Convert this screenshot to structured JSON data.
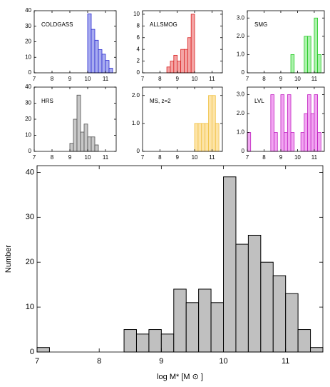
{
  "chart_data": [
    {
      "type": "histogram",
      "title": "COLDGASS",
      "color": "#2a2ad0",
      "fill": "#a8acf0",
      "bins": [
        7.0,
        7.2,
        7.4,
        7.6,
        7.8,
        8.0,
        8.2,
        8.4,
        8.6,
        8.8,
        9.0,
        9.2,
        9.4,
        9.6,
        9.8,
        10.0,
        10.2,
        10.4,
        10.6,
        10.8,
        11.0,
        11.2,
        11.4,
        11.6
      ],
      "values": [
        0,
        0,
        0,
        0,
        0,
        0,
        0,
        0,
        0,
        0,
        0,
        0,
        0,
        0,
        0,
        38,
        28,
        21,
        15,
        12,
        8,
        3,
        0
      ],
      "xlim": [
        7,
        11.6
      ],
      "xticks": [
        7,
        8,
        9,
        10,
        11
      ],
      "ylim": [
        0,
        40
      ],
      "yticks": [
        0,
        10,
        20,
        30,
        40
      ]
    },
    {
      "type": "histogram",
      "title": "ALLSMOG",
      "color": "#d82020",
      "fill": "#f4a4a4",
      "bins": [
        7.0,
        7.2,
        7.4,
        7.6,
        7.8,
        8.0,
        8.2,
        8.4,
        8.6,
        8.8,
        9.0,
        9.2,
        9.4,
        9.6,
        9.8,
        10.0,
        10.2,
        10.4,
        10.6,
        10.8,
        11.0,
        11.2,
        11.4,
        11.6
      ],
      "values": [
        0,
        0,
        0,
        0,
        0,
        0,
        0,
        1,
        2,
        3,
        2,
        4,
        4,
        6,
        10,
        0,
        0,
        0,
        0,
        0,
        0,
        0,
        0
      ],
      "xlim": [
        7,
        11.6
      ],
      "xticks": [
        7,
        8,
        9,
        10,
        11
      ],
      "ylim": [
        0,
        10.6
      ],
      "yticks": [
        0,
        2,
        4,
        6,
        8,
        10
      ]
    },
    {
      "type": "histogram",
      "title": "SMG",
      "color": "#22c822",
      "fill": "#acf2ac",
      "bins": [
        7.0,
        7.2,
        7.4,
        7.6,
        7.8,
        8.0,
        8.2,
        8.4,
        8.6,
        8.8,
        9.0,
        9.2,
        9.4,
        9.6,
        9.8,
        10.0,
        10.2,
        10.4,
        10.6,
        10.8,
        11.0,
        11.2,
        11.4,
        11.6
      ],
      "values": [
        0,
        0,
        0,
        0,
        0,
        0,
        0,
        0,
        0,
        0,
        0,
        0,
        0,
        1,
        0,
        0,
        0,
        2,
        2,
        0,
        3,
        1,
        0
      ],
      "xlim": [
        7,
        11.6
      ],
      "xticks": [
        7,
        8,
        9,
        10,
        11
      ],
      "ylim": [
        0,
        3.4
      ],
      "yticks": [
        0,
        {
          "value": 1,
          "label": "1.0"
        },
        {
          "value": 2,
          "label": "2.0"
        },
        {
          "value": 3,
          "label": "3.0"
        }
      ]
    },
    {
      "type": "histogram",
      "title": "HRS",
      "color": "#505050",
      "fill": "#c8c8c8",
      "bins": [
        7.0,
        7.2,
        7.4,
        7.6,
        7.8,
        8.0,
        8.2,
        8.4,
        8.6,
        8.8,
        9.0,
        9.2,
        9.4,
        9.6,
        9.8,
        10.0,
        10.2,
        10.4,
        10.6,
        10.8,
        11.0,
        11.2,
        11.4,
        11.6
      ],
      "values": [
        0,
        0,
        0,
        0,
        0,
        0,
        0,
        0,
        0,
        0,
        5,
        20,
        35,
        12,
        17,
        9,
        9,
        4,
        0,
        0,
        0,
        0,
        0
      ],
      "xlim": [
        7,
        11.6
      ],
      "xticks": [
        7,
        8,
        9,
        10,
        11
      ],
      "ylim": [
        0,
        40
      ],
      "yticks": [
        0,
        10,
        20,
        30,
        40
      ]
    },
    {
      "type": "histogram",
      "title": "MS, z=2",
      "color": "#f0c040",
      "fill": "#fde4a8",
      "bins": [
        7.0,
        7.2,
        7.4,
        7.6,
        7.8,
        8.0,
        8.2,
        8.4,
        8.6,
        8.8,
        9.0,
        9.2,
        9.4,
        9.6,
        9.8,
        10.0,
        10.2,
        10.4,
        10.6,
        10.8,
        11.0,
        11.2,
        11.4,
        11.6
      ],
      "values": [
        0,
        0,
        0,
        0,
        0,
        0,
        0,
        0,
        0,
        0,
        0,
        0,
        0,
        0,
        0,
        1,
        1,
        1,
        1,
        2,
        2,
        1,
        0
      ],
      "xlim": [
        7,
        11.6
      ],
      "xticks": [
        7,
        8,
        9,
        10,
        11
      ],
      "ylim": [
        0,
        2.3
      ],
      "yticks": [
        0,
        {
          "value": 1,
          "label": "1.0"
        },
        {
          "value": 2,
          "label": "2.0"
        }
      ]
    },
    {
      "type": "histogram",
      "title": "LVL",
      "color": "#c020c0",
      "fill": "#f2a6f2",
      "bins": [
        7.0,
        7.2,
        7.4,
        7.6,
        7.8,
        8.0,
        8.2,
        8.4,
        8.6,
        8.8,
        9.0,
        9.2,
        9.4,
        9.6,
        9.8,
        10.0,
        10.2,
        10.4,
        10.6,
        10.8,
        11.0,
        11.2,
        11.4,
        11.6
      ],
      "values": [
        1,
        0,
        0,
        0,
        0,
        0,
        0,
        3,
        1,
        0,
        3,
        1,
        3,
        1,
        0,
        0,
        1,
        2,
        3,
        2,
        3,
        1,
        0
      ],
      "xlim": [
        7,
        11.6
      ],
      "xticks": [
        7,
        8,
        9,
        10,
        11
      ],
      "ylim": [
        0,
        3.4
      ],
      "yticks": [
        0,
        {
          "value": 1,
          "label": "1.0"
        },
        {
          "value": 2,
          "label": "2.0"
        },
        {
          "value": 3,
          "label": "3.0"
        }
      ]
    },
    {
      "type": "histogram",
      "xlabel": "log M*  [M ⊙ ]",
      "ylabel": "Number",
      "color": "#000000",
      "fill": "#c0c0c0",
      "bins": [
        7.0,
        7.2,
        7.4,
        7.6,
        7.8,
        8.0,
        8.2,
        8.4,
        8.6,
        8.8,
        9.0,
        9.2,
        9.4,
        9.6,
        9.8,
        10.0,
        10.2,
        10.4,
        10.6,
        10.8,
        11.0,
        11.2,
        11.4,
        11.6
      ],
      "values": [
        1,
        0,
        0,
        0,
        0,
        0,
        0,
        5,
        4,
        5,
        4,
        14,
        11,
        14,
        11,
        39,
        24,
        26,
        20,
        17,
        13,
        5,
        1
      ],
      "xlim": [
        7,
        11.6
      ],
      "xticks": [
        7,
        8,
        9,
        10,
        11
      ],
      "ylim": [
        0,
        41.5
      ],
      "yticks": [
        0,
        10,
        20,
        30,
        40
      ]
    }
  ]
}
